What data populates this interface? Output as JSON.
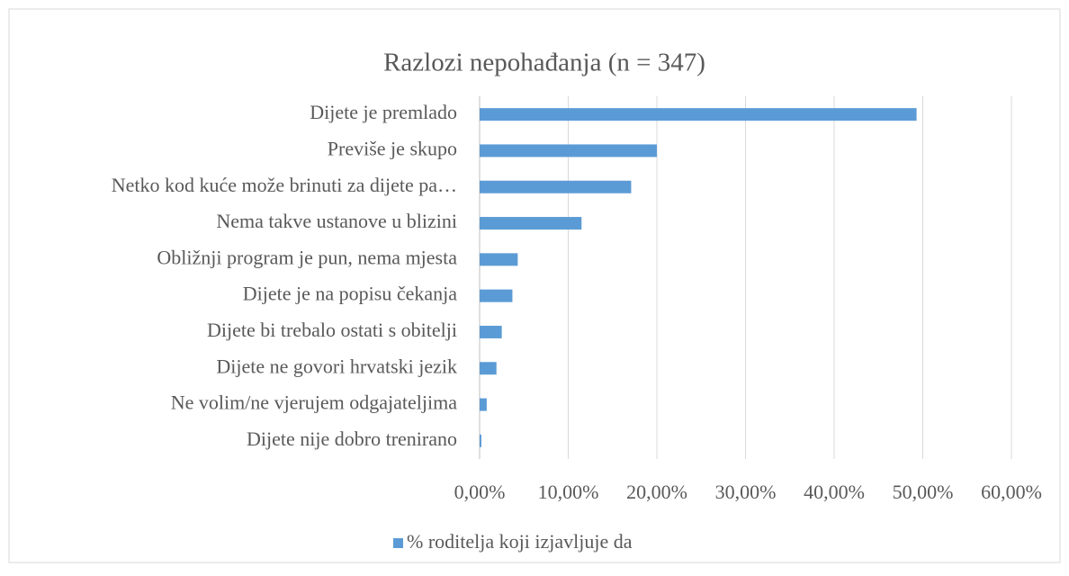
{
  "chart_data": {
    "type": "bar",
    "orientation": "horizontal",
    "title": "Razlozi nepohađanja (n = 347)",
    "categories": [
      "Dijete je premlado",
      "Previše je skupo",
      "Netko kod kuće može brinuti za dijete pa…",
      "Nema takve ustanove u blizini",
      "Obližnji program je pun, nema mjesta",
      "Dijete je na popisu čekanja",
      "Dijete bi trebalo ostati s obitelji",
      "Dijete ne govori hrvatski jezik",
      "Ne volim/ne vjerujem odgajateljima",
      "Dijete nije dobro trenirano"
    ],
    "series": [
      {
        "name": "% roditelja koji izjavljuje da",
        "color": "#5b9bd5",
        "values": [
          49.3,
          20.0,
          17.1,
          11.5,
          4.3,
          3.7,
          2.5,
          1.9,
          0.8,
          0.2
        ]
      }
    ],
    "xlim": [
      0,
      60
    ],
    "xticks": [
      {
        "value": 0,
        "label": "0,00%"
      },
      {
        "value": 10,
        "label": "10,00%"
      },
      {
        "value": 20,
        "label": "20,00%"
      },
      {
        "value": 30,
        "label": "30,00%"
      },
      {
        "value": 40,
        "label": "40,00%"
      },
      {
        "value": 50,
        "label": "50,00%"
      },
      {
        "value": 60,
        "label": "60,00%"
      }
    ],
    "grid": true,
    "legend": "bottom"
  }
}
